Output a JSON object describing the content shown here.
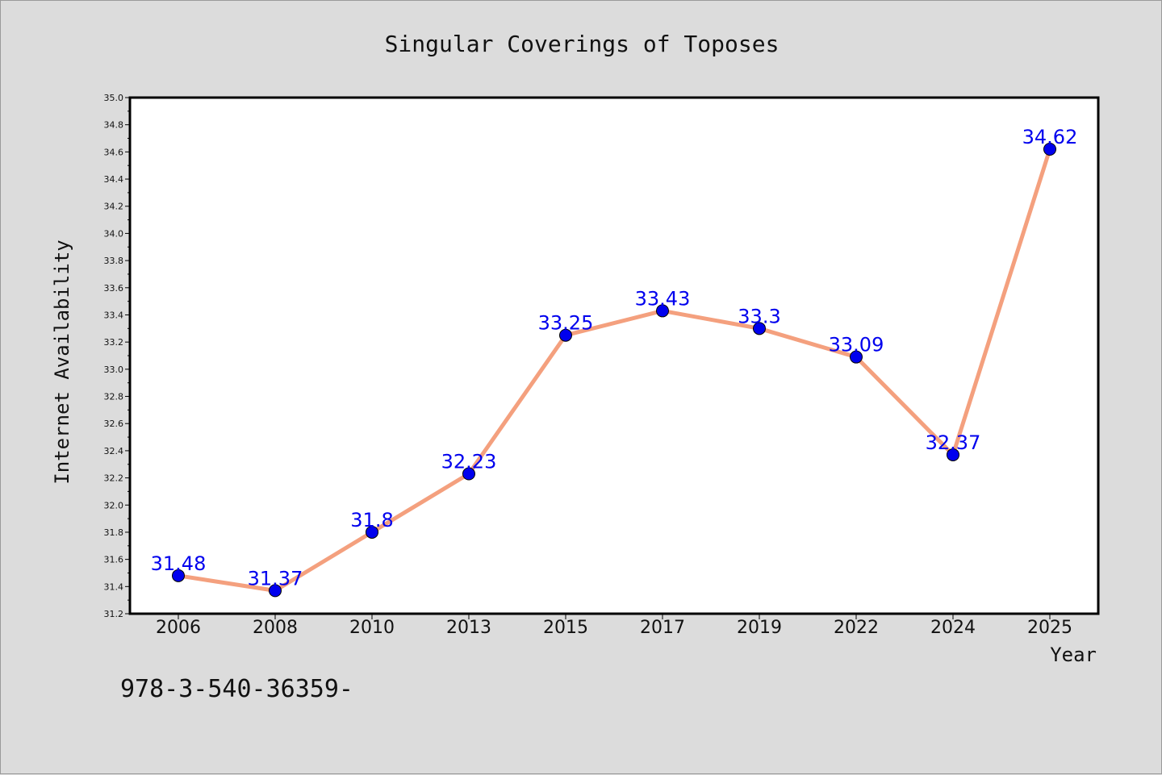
{
  "chart_data": {
    "type": "line",
    "title": "Singular Coverings of Toposes",
    "xlabel": "Year",
    "ylabel": "Internet Availability",
    "categories": [
      "2006",
      "2008",
      "2010",
      "2013",
      "2015",
      "2017",
      "2019",
      "2022",
      "2024",
      "2025"
    ],
    "series": [
      {
        "values": [
          31.48,
          31.37,
          31.8,
          32.23,
          33.25,
          33.43,
          33.3,
          33.09,
          32.37,
          34.62
        ]
      }
    ],
    "data_labels": [
      "31.48",
      "31.37",
      "31.8",
      "32.23",
      "33.25",
      "33.43",
      "33.3",
      "33.09",
      "32.37",
      "34.62"
    ],
    "ylim": [
      31.2,
      35.0
    ],
    "yticks": [
      "31.2",
      "31.4",
      "31.6",
      "31.8",
      "32.0",
      "32.2",
      "32.4",
      "32.6",
      "32.8",
      "33.0",
      "33.2",
      "33.4",
      "33.6",
      "33.8",
      "34.0",
      "34.2",
      "34.4",
      "34.6",
      "34.8",
      "35.0"
    ],
    "grid": false,
    "line_color": "#f4a07e",
    "marker_color": "#0000ee",
    "label_color": "#0000ee",
    "annotation": "978-3-540-36359-"
  }
}
